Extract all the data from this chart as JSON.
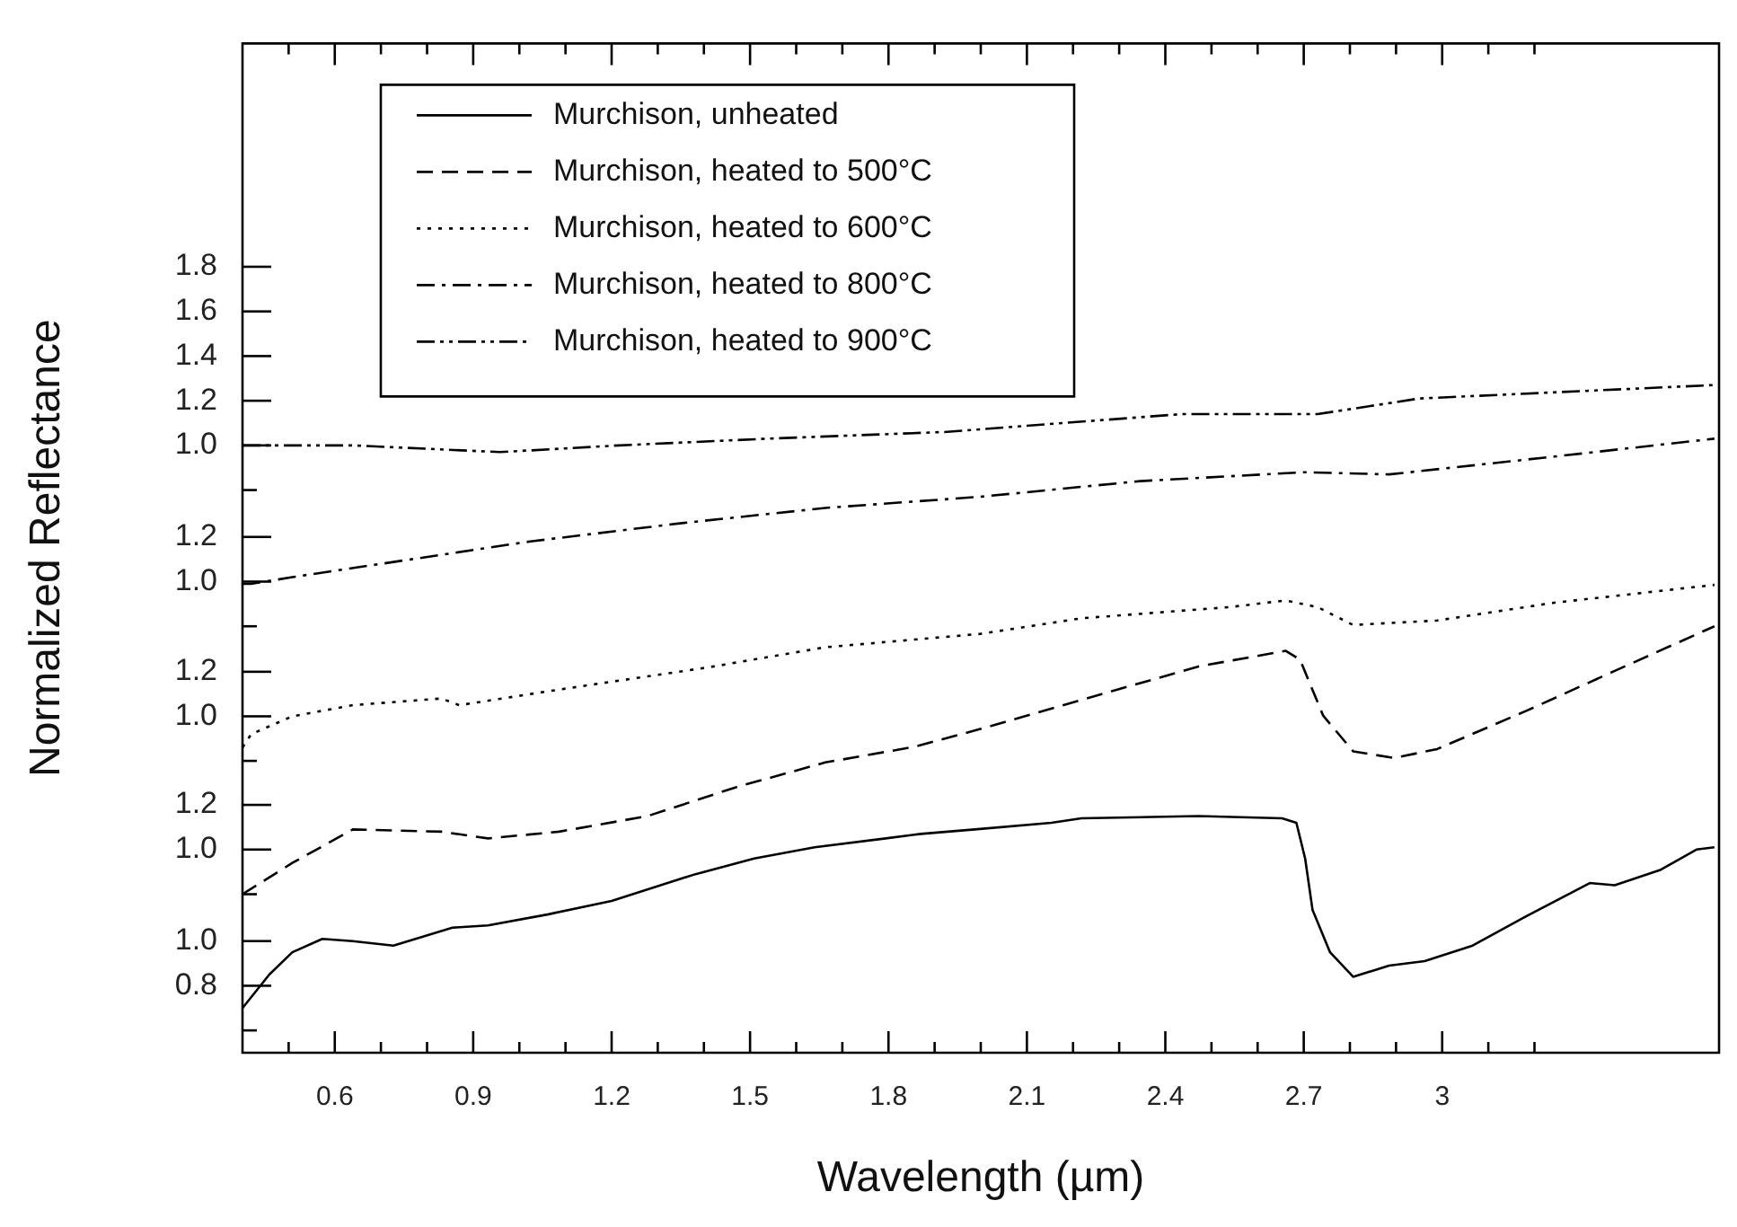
{
  "chart_data": [
    {
      "type": "line",
      "xlabel": "Wavelength (µm)",
      "ylabel": "Normalized Reflectance",
      "legend": "top left",
      "xlim": [
        0.4,
        3.6
      ],
      "xticks": [
        {
          "value": 0.5,
          "label": null
        },
        0.6,
        {
          "value": 0.7,
          "label": null
        },
        {
          "value": 0.8,
          "label": null
        },
        0.9,
        {
          "value": 1.0,
          "label": null
        },
        {
          "value": 1.1,
          "label": null
        },
        1.2,
        {
          "value": 1.3,
          "label": null
        },
        {
          "value": 1.4,
          "label": null
        },
        1.5,
        {
          "value": 1.6,
          "label": null
        },
        {
          "value": 1.7,
          "label": null
        },
        1.8,
        {
          "value": 1.9,
          "label": null
        },
        {
          "value": 2.0,
          "label": null
        },
        2.1,
        {
          "value": 2.2,
          "label": null
        },
        {
          "value": 2.3,
          "label": null
        },
        2.4,
        {
          "value": 2.5,
          "label": null
        },
        {
          "value": 2.6,
          "label": null
        },
        2.7,
        {
          "value": 2.8,
          "label": null
        },
        {
          "value": 2.9,
          "label": null
        },
        3,
        {
          "value": 3.1,
          "label": null
        },
        {
          "value": 3.2,
          "label": null
        }
      ],
      "ylim": [
        0.5,
        5.02
      ],
      "yticks": [
        {
          "value": 0.6,
          "label": null
        },
        0.8,
        {
          "value": 1.0,
          "label": "1.0"
        }
      ],
      "series": [
        {
          "name": "Murchison, unheated",
          "color": "#000000",
          "line_style": "solid",
          "x": [
            0.4,
            0.458,
            0.508,
            0.573,
            0.639,
            0.727,
            0.855,
            0.932,
            1.063,
            1.2,
            1.382,
            1.509,
            1.64,
            1.794,
            1.87,
            1.987,
            2.153,
            2.218,
            2.472,
            2.653,
            2.684,
            2.703,
            2.719,
            2.757,
            2.807,
            2.885,
            2.962,
            3.066,
            3.181,
            3.32,
            3.374,
            3.474,
            3.551,
            3.59
          ],
          "values": [
            0.7,
            0.85,
            0.95,
            1.01,
            1.0,
            0.98,
            1.06,
            1.07,
            1.12,
            1.18,
            1.3,
            1.37,
            1.42,
            1.46,
            1.48,
            1.5,
            1.53,
            1.55,
            1.56,
            1.55,
            1.53,
            1.37,
            1.14,
            0.95,
            0.84,
            0.89,
            0.91,
            0.98,
            1.11,
            1.26,
            1.25,
            1.32,
            1.41,
            1.42
          ]
        }
      ]
    },
    {
      "type": "line",
      "legend": "top left",
      "tick_labels": "y",
      "xlim": [
        0.4,
        3.6
      ],
      "ylim": [
        0.09,
        4.61
      ],
      "yticks": [
        {
          "value": 0.8,
          "label": null
        },
        {
          "value": 1.0,
          "label": "1.0"
        },
        1.2
      ],
      "series": [
        {
          "name": "Murchison, heated to 500°C",
          "color": "#000000",
          "line_style": "dashed",
          "x": [
            0.4,
            0.508,
            0.639,
            0.831,
            0.932,
            1.086,
            1.278,
            1.471,
            1.663,
            1.856,
            1.999,
            2.218,
            2.472,
            2.661,
            2.692,
            2.742,
            2.807,
            2.896,
            2.989,
            3.181,
            3.374,
            3.59
          ],
          "values": [
            0.8,
            0.94,
            1.09,
            1.08,
            1.05,
            1.08,
            1.15,
            1.28,
            1.39,
            1.46,
            1.54,
            1.67,
            1.82,
            1.89,
            1.85,
            1.6,
            1.44,
            1.41,
            1.45,
            1.62,
            1.8,
            2.0
          ]
        }
      ]
    },
    {
      "type": "line",
      "legend": "top left",
      "tick_labels": "y",
      "xlim": [
        0.4,
        3.6
      ],
      "ylim": [
        -0.51,
        4.02
      ],
      "yticks": [
        {
          "value": 0.8,
          "label": null
        },
        {
          "value": 1.0,
          "label": "1.0"
        },
        1.2
      ],
      "series": [
        {
          "name": "Murchison, heated to 600°C",
          "color": "#000000",
          "line_style": "dotted",
          "x": [
            0.4,
            0.419,
            0.508,
            0.639,
            0.831,
            0.87,
            1.086,
            1.41,
            1.663,
            1.999,
            2.218,
            2.538,
            2.661,
            2.73,
            2.807,
            2.989,
            3.243,
            3.59
          ],
          "values": [
            0.86,
            0.92,
            1.0,
            1.05,
            1.08,
            1.05,
            1.12,
            1.22,
            1.31,
            1.37,
            1.44,
            1.49,
            1.52,
            1.49,
            1.41,
            1.43,
            1.51,
            1.59
          ]
        }
      ]
    },
    {
      "type": "line",
      "legend": "top left",
      "tick_labels": "y",
      "xlim": [
        0.4,
        3.6
      ],
      "ylim": [
        -1.11,
        3.41
      ],
      "yticks": [
        {
          "value": 0.8,
          "label": null
        },
        {
          "value": 1.0,
          "label": "1.0"
        },
        1.2
      ],
      "series": [
        {
          "name": "Murchison, heated to 800°C",
          "color": "#000000",
          "line_style": "dashdot",
          "x": [
            0.4,
            0.419,
            0.508,
            0.766,
            1.024,
            1.344,
            1.663,
            1.999,
            2.345,
            2.703,
            2.885,
            3.243,
            3.59
          ],
          "values": [
            0.99,
            0.99,
            1.02,
            1.1,
            1.18,
            1.26,
            1.33,
            1.38,
            1.45,
            1.49,
            1.48,
            1.56,
            1.64
          ]
        }
      ]
    },
    {
      "type": "line",
      "legend": "top left",
      "tick_labels": "y",
      "xlim": [
        0.4,
        3.6
      ],
      "ylim": [
        -1.72,
        2.8
      ],
      "yticks": [
        {
          "value": 0.8,
          "label": null
        },
        {
          "value": 1.0,
          "label": "1.0"
        },
        1.2,
        1.4,
        1.6,
        1.8
      ],
      "series": [
        {
          "name": "Murchison, heated to 900°C",
          "color": "#000000",
          "line_style": "dashdotdot",
          "x": [
            0.4,
            0.639,
            0.958,
            1.216,
            1.536,
            1.921,
            2.434,
            2.73,
            2.95,
            3.586
          ],
          "values": [
            1.0,
            1.0,
            0.97,
            1.0,
            1.03,
            1.06,
            1.14,
            1.14,
            1.21,
            1.27
          ]
        }
      ]
    }
  ]
}
